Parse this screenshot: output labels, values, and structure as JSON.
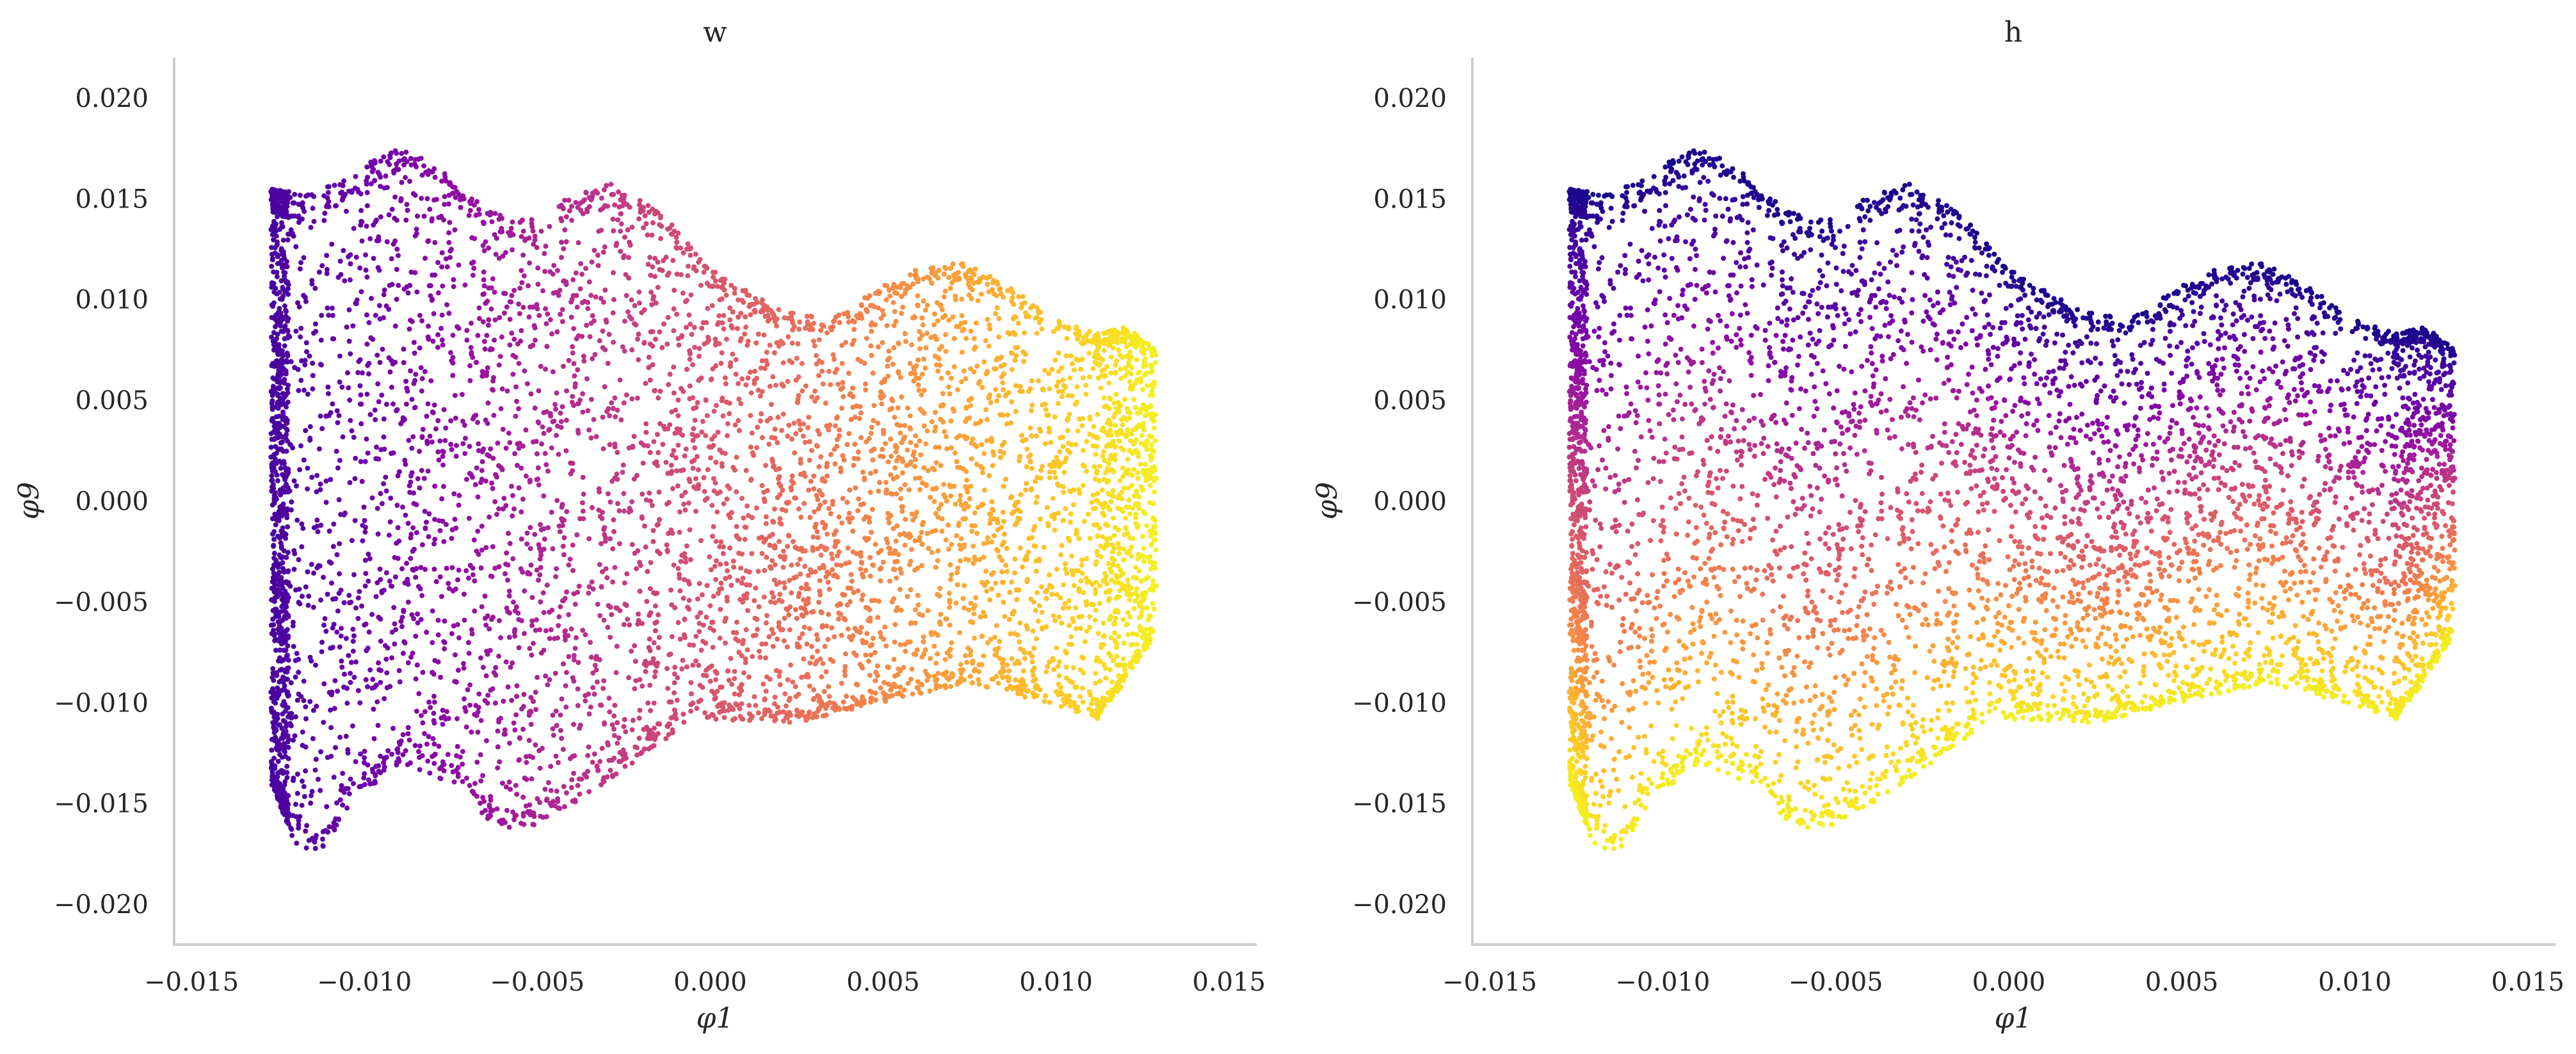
{
  "chart_data": [
    {
      "type": "scatter",
      "title": "w",
      "xlabel": "φ1",
      "ylabel": "φ9",
      "xlim": [
        -0.0155,
        0.0158
      ],
      "ylim": [
        -0.022,
        0.022
      ],
      "xticks": [
        -0.015,
        -0.01,
        -0.005,
        0.0,
        0.005,
        0.01,
        0.015
      ],
      "xtick_labels": [
        "−0.015",
        "−0.010",
        "−0.005",
        "0.000",
        "0.005",
        "0.010",
        "0.015"
      ],
      "yticks": [
        -0.02,
        -0.015,
        -0.01,
        -0.005,
        0.0,
        0.005,
        0.01,
        0.015,
        0.02
      ],
      "ytick_labels": [
        "−0.020",
        "−0.015",
        "−0.010",
        "−0.005",
        "0.000",
        "0.005",
        "0.010",
        "0.015",
        "0.020"
      ],
      "grid": false,
      "colormap": "plasma",
      "color_by": "x",
      "point_color": "",
      "point_count": 6500,
      "data_region": {
        "x_range": [
          -0.0127,
          0.0129
        ],
        "top_boundary": [
          [
            -0.0127,
            0.0155
          ],
          [
            -0.0115,
            0.0152
          ],
          [
            -0.01,
            0.0167
          ],
          [
            -0.0088,
            0.0177
          ],
          [
            -0.0078,
            0.0165
          ],
          [
            -0.0065,
            0.0145
          ],
          [
            -0.0052,
            0.014
          ],
          [
            -0.004,
            0.0152
          ],
          [
            -0.0028,
            0.0158
          ],
          [
            -0.0015,
            0.0145
          ],
          [
            0.0,
            0.0115
          ],
          [
            0.002,
            0.0095
          ],
          [
            0.0035,
            0.009
          ],
          [
            0.0048,
            0.0105
          ],
          [
            0.006,
            0.0116
          ],
          [
            0.0073,
            0.0119
          ],
          [
            0.0088,
            0.0105
          ],
          [
            0.01,
            0.009
          ],
          [
            0.0112,
            0.0083
          ],
          [
            0.012,
            0.0087
          ],
          [
            0.0129,
            0.0075
          ]
        ],
        "bottom_boundary": [
          [
            -0.0127,
            -0.014
          ],
          [
            -0.012,
            -0.017
          ],
          [
            -0.0113,
            -0.0178
          ],
          [
            -0.0104,
            -0.015
          ],
          [
            -0.009,
            -0.013
          ],
          [
            -0.0075,
            -0.014
          ],
          [
            -0.0062,
            -0.0163
          ],
          [
            -0.0048,
            -0.016
          ],
          [
            -0.003,
            -0.014
          ],
          [
            -0.0005,
            -0.0108
          ],
          [
            0.0025,
            -0.011
          ],
          [
            0.005,
            -0.01
          ],
          [
            0.0075,
            -0.009
          ],
          [
            0.01,
            -0.0102
          ],
          [
            0.0112,
            -0.0108
          ],
          [
            0.012,
            -0.009
          ],
          [
            0.0129,
            -0.0065
          ]
        ]
      }
    },
    {
      "type": "scatter",
      "title": "h",
      "xlabel": "φ1",
      "ylabel": "φ9",
      "xlim": [
        -0.0155,
        0.0158
      ],
      "ylim": [
        -0.022,
        0.022
      ],
      "xticks": [
        -0.015,
        -0.01,
        -0.005,
        0.0,
        0.005,
        0.01,
        0.015
      ],
      "xtick_labels": [
        "−0.015",
        "−0.010",
        "−0.005",
        "0.000",
        "0.005",
        "0.010",
        "0.015"
      ],
      "yticks": [
        -0.02,
        -0.015,
        -0.01,
        -0.005,
        0.0,
        0.005,
        0.01,
        0.015,
        0.02
      ],
      "ytick_labels": [
        "−0.020",
        "−0.015",
        "−0.010",
        "−0.005",
        "0.000",
        "0.005",
        "0.010",
        "0.015",
        "0.020"
      ],
      "grid": false,
      "colormap": "plasma",
      "color_by": "distance-from-top",
      "point_color": "",
      "point_count": 6500,
      "data_region": {
        "x_range": [
          -0.0127,
          0.0129
        ],
        "top_boundary": [
          [
            -0.0127,
            0.0155
          ],
          [
            -0.0115,
            0.0152
          ],
          [
            -0.01,
            0.0167
          ],
          [
            -0.0088,
            0.0177
          ],
          [
            -0.0078,
            0.0165
          ],
          [
            -0.0065,
            0.0145
          ],
          [
            -0.0052,
            0.014
          ],
          [
            -0.004,
            0.0152
          ],
          [
            -0.0028,
            0.0158
          ],
          [
            -0.0015,
            0.0145
          ],
          [
            0.0,
            0.0115
          ],
          [
            0.002,
            0.0095
          ],
          [
            0.0035,
            0.009
          ],
          [
            0.0048,
            0.0105
          ],
          [
            0.006,
            0.0116
          ],
          [
            0.0073,
            0.0119
          ],
          [
            0.0088,
            0.0105
          ],
          [
            0.01,
            0.009
          ],
          [
            0.0112,
            0.0083
          ],
          [
            0.012,
            0.0087
          ],
          [
            0.0129,
            0.0075
          ]
        ],
        "bottom_boundary": [
          [
            -0.0127,
            -0.014
          ],
          [
            -0.012,
            -0.017
          ],
          [
            -0.0113,
            -0.0178
          ],
          [
            -0.0104,
            -0.015
          ],
          [
            -0.009,
            -0.013
          ],
          [
            -0.0075,
            -0.014
          ],
          [
            -0.0062,
            -0.0163
          ],
          [
            -0.0048,
            -0.016
          ],
          [
            -0.003,
            -0.014
          ],
          [
            -0.0005,
            -0.0108
          ],
          [
            0.0025,
            -0.011
          ],
          [
            0.005,
            -0.01
          ],
          [
            0.0075,
            -0.009
          ],
          [
            0.01,
            -0.0102
          ],
          [
            0.0112,
            -0.0108
          ],
          [
            0.012,
            -0.009
          ],
          [
            0.0129,
            -0.0065
          ]
        ]
      }
    }
  ],
  "style": {
    "axis_color": "#cccccc",
    "text_color": "#262626",
    "background": "#ffffff",
    "plasma_stops": [
      "#0d0887",
      "#41049d",
      "#6a00a8",
      "#8f0da4",
      "#b12a90",
      "#cc4778",
      "#e16462",
      "#f2844b",
      "#fca636",
      "#fcce25",
      "#f0f921"
    ]
  }
}
